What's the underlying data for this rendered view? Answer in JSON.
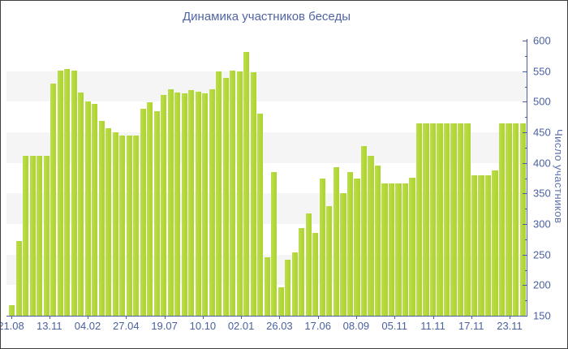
{
  "window": {
    "title": "Динамика участников беседы"
  },
  "chart_data": {
    "type": "bar",
    "title": "Динамика участников беседы",
    "xlabel": "",
    "ylabel": "Число участников",
    "ylim": [
      150,
      600
    ],
    "y_ticks": [
      600,
      550,
      500,
      450,
      400,
      350,
      300,
      250,
      200,
      150
    ],
    "y_minor_tick_step": 25,
    "grid": "alternating horizontal gray bands of 50 units (550-500, 450-400, 350-300, 250-200)",
    "legend_position": "none",
    "x_tick_labels": [
      "21.08",
      "13.11",
      "04.02",
      "27.04",
      "19.07",
      "10.10",
      "02.01",
      "26.03",
      "17.06",
      "08.09",
      "05.11",
      "11.11",
      "17.11",
      "23.11"
    ],
    "values": [
      167,
      272,
      412,
      412,
      412,
      412,
      530,
      551,
      554,
      551,
      515,
      501,
      497,
      468,
      457,
      450,
      445,
      445,
      445,
      489,
      499,
      484,
      511,
      520,
      515,
      514,
      519,
      517,
      514,
      521,
      549,
      539,
      551,
      550,
      581,
      548,
      480,
      245,
      385,
      196,
      242,
      254,
      293,
      317,
      285,
      374,
      329,
      393,
      350,
      385,
      374,
      427,
      412,
      396,
      366,
      366,
      366,
      366,
      376,
      465,
      465,
      465,
      465,
      465,
      465,
      465,
      465,
      380,
      380,
      380,
      388,
      465,
      465,
      465,
      465
    ],
    "colors": {
      "bar": "#b2d838",
      "axis": "#4a5f9e",
      "tick_label": "#4a61a0",
      "title": "#5065a3",
      "band": "#f5f5f6",
      "background": "#ffffff"
    }
  }
}
